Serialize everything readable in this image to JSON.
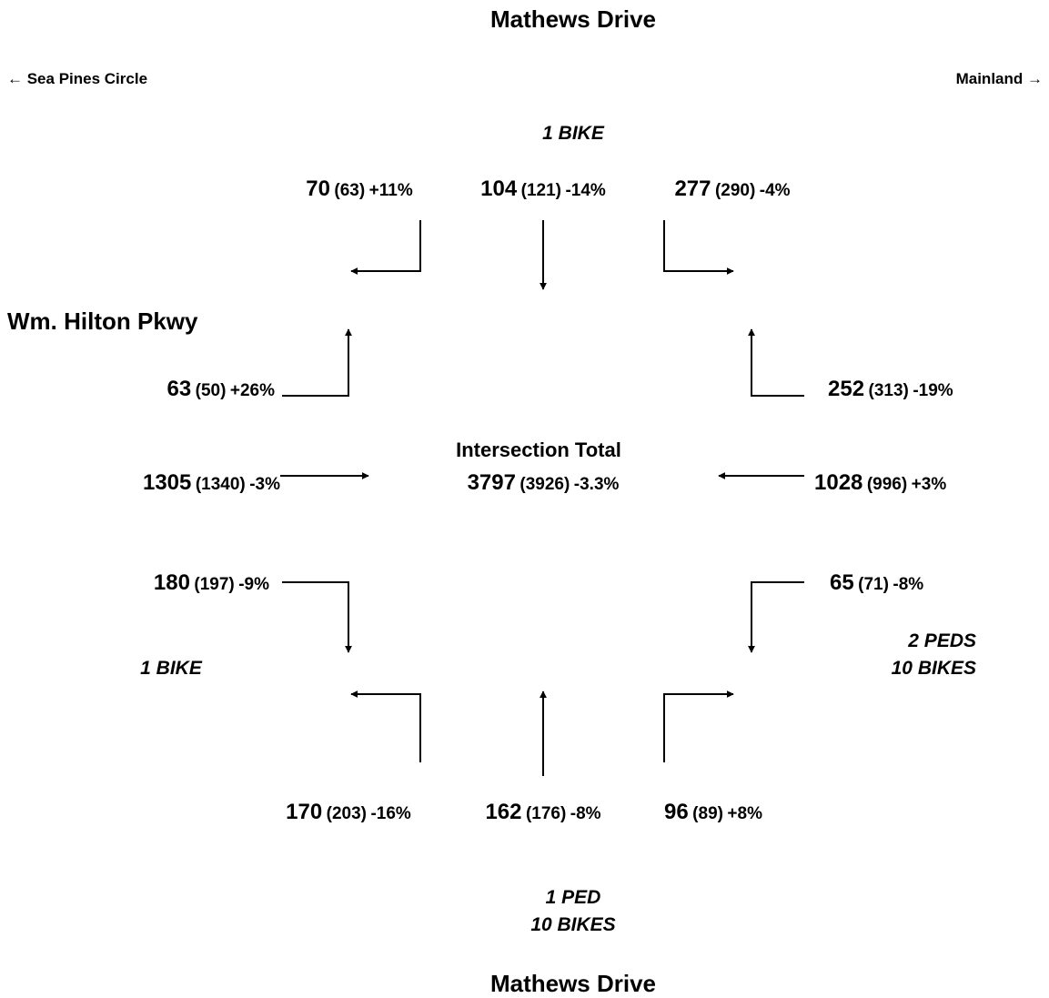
{
  "title_top": "Mathews Drive",
  "title_bottom": "Mathews Drive",
  "west_direction": "← Sea Pines Circle",
  "east_direction": "Mainland →",
  "cross_street": "Wm. Hilton Pkwy",
  "total": {
    "label": "Intersection Total",
    "count": "3797",
    "prev": "(3926)",
    "change": "-3.3%"
  },
  "movements": [
    {
      "count": "70",
      "prev": "(63)",
      "change": "+11%"
    },
    {
      "count": "104",
      "prev": "(121)",
      "change": "-14%"
    },
    {
      "count": "277",
      "prev": "(290)",
      "change": "-4%"
    },
    {
      "count": "63",
      "prev": "(50)",
      "change": "+26%"
    },
    {
      "count": "1305",
      "prev": "(1340)",
      "change": "-3%"
    },
    {
      "count": "180",
      "prev": "(197)",
      "change": "-9%"
    },
    {
      "count": "252",
      "prev": "(313)",
      "change": "-19%"
    },
    {
      "count": "1028",
      "prev": "(996)",
      "change": "+3%"
    },
    {
      "count": "65",
      "prev": "(71)",
      "change": "-8%"
    },
    {
      "count": "170",
      "prev": "(203)",
      "change": "-16%"
    },
    {
      "count": "162",
      "prev": "(176)",
      "change": "-8%"
    },
    {
      "count": "96",
      "prev": "(89)",
      "change": "+8%"
    }
  ],
  "notes": {
    "north": [
      "1 BIKE"
    ],
    "west": [
      "1 BIKE"
    ],
    "east": [
      "2 PEDS",
      "10 BIKES"
    ],
    "south": [
      "1 PED",
      "10 BIKES"
    ]
  }
}
